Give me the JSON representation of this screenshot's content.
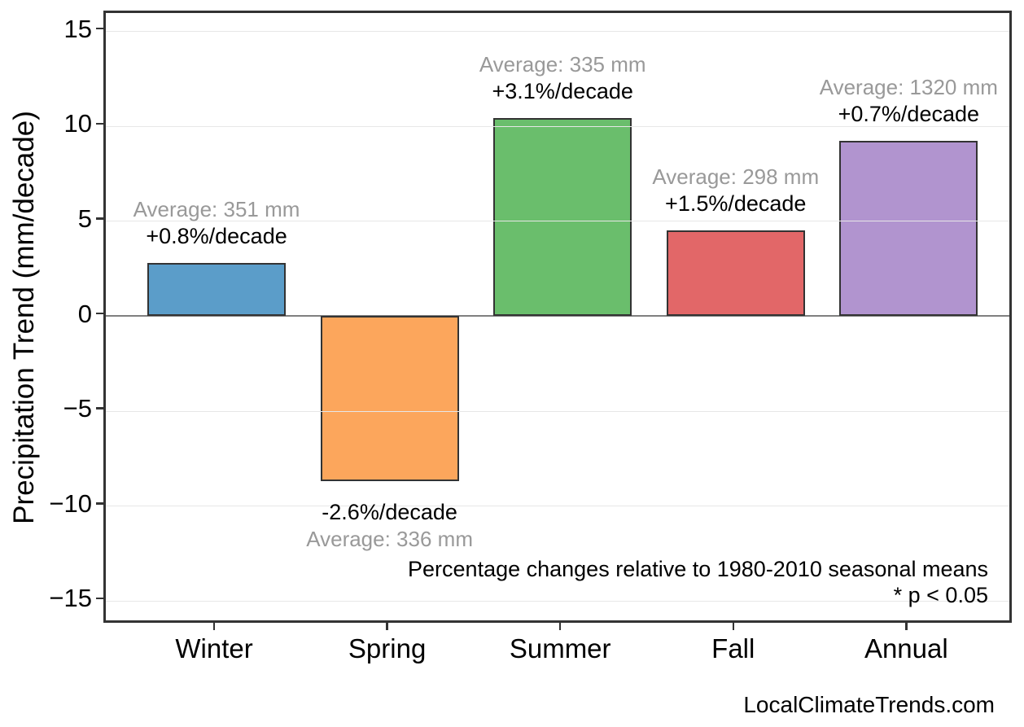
{
  "page": {
    "background": "#ffffff"
  },
  "chart_data": {
    "type": "bar",
    "title": "",
    "categories": [
      "Winter",
      "Spring",
      "Summer",
      "Fall",
      "Annual"
    ],
    "values": [
      2.8,
      -8.7,
      10.4,
      4.5,
      9.2
    ],
    "units": "mm/decade",
    "bar_colors": [
      "#5B9DC9",
      "#FCA65C",
      "#6ABE6C",
      "#E26768",
      "#B194CF"
    ],
    "bar_edge_color": "#333333",
    "annotations": [
      {
        "average": "Average: 351 mm",
        "trend": "+0.8%/decade"
      },
      {
        "average": "Average: 336 mm",
        "trend": "-2.6%/decade"
      },
      {
        "average": "Average: 335 mm",
        "trend": "+3.1%/decade"
      },
      {
        "average": "Average: 298 mm",
        "trend": "+1.5%/decade"
      },
      {
        "average": "Average: 1320 mm",
        "trend": "+0.7%/decade"
      }
    ],
    "annotation_colors": {
      "average": "#999999",
      "trend": "#000000"
    },
    "xlabel": "",
    "ylabel": "Precipitation Trend (mm/decade)",
    "ylim": [
      -16.3,
      16.0
    ],
    "yticks": [
      -15,
      -10,
      -5,
      0,
      5,
      10,
      15
    ],
    "grid": "horizontal light-gray gridlines at yticks, gray zero line",
    "zero_line_color": "#808080",
    "legend": "none",
    "notes": [
      "Percentage changes relative to 1980-2010 seasonal means",
      "* p < 0.05"
    ]
  },
  "footer": {
    "watermark": "LocalClimateTrends.com"
  }
}
